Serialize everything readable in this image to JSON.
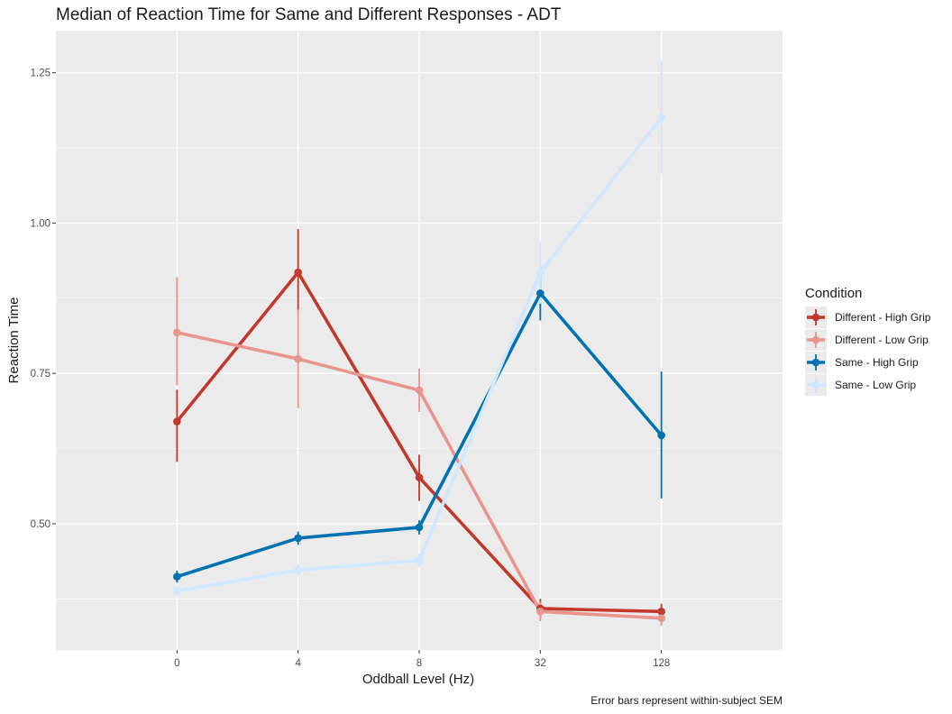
{
  "chart_data": {
    "type": "line",
    "title": "Median of Reaction Time for Same and Different Responses - ADT",
    "xlabel": "Oddball Level (Hz)",
    "ylabel": "Reaction Time",
    "categories": [
      "0",
      "4",
      "8",
      "32",
      "128"
    ],
    "ylim": [
      0.29,
      1.32
    ],
    "yticks": [
      0.5,
      0.75,
      1.0,
      1.25
    ],
    "ytick_labels": [
      "0.50",
      "0.75",
      "1.00",
      "1.25"
    ],
    "grid": true,
    "legend": {
      "title": "Condition",
      "position": "right"
    },
    "caption": "Error bars represent within-subject SEM",
    "series": [
      {
        "name": "Different - High Grip",
        "color": "#c0392b",
        "values": [
          0.67,
          0.918,
          0.577,
          0.359,
          0.354
        ],
        "error_low": [
          0.603,
          0.853,
          0.538,
          0.343,
          0.342
        ],
        "error_high": [
          0.723,
          0.99,
          0.615,
          0.375,
          0.367
        ]
      },
      {
        "name": "Different - Low Grip",
        "color": "#e8958e",
        "values": [
          0.818,
          0.774,
          0.722,
          0.354,
          0.343
        ],
        "error_low": [
          0.73,
          0.692,
          0.686,
          0.338,
          0.33
        ],
        "error_high": [
          0.91,
          0.856,
          0.758,
          0.37,
          0.356
        ]
      },
      {
        "name": "Same - High Grip",
        "color": "#0072b2",
        "values": [
          0.412,
          0.476,
          0.494,
          0.883,
          0.647
        ],
        "error_low": [
          0.402,
          0.465,
          0.482,
          0.838,
          0.542
        ],
        "error_high": [
          0.422,
          0.487,
          0.506,
          0.928,
          0.753
        ]
      },
      {
        "name": "Same - Low Grip",
        "color": "#cfe7ff",
        "values": [
          0.388,
          0.423,
          0.439,
          0.918,
          1.176
        ],
        "error_low": [
          0.379,
          0.413,
          0.428,
          0.866,
          1.082
        ],
        "error_high": [
          0.397,
          0.433,
          0.45,
          0.97,
          1.27
        ]
      }
    ]
  }
}
